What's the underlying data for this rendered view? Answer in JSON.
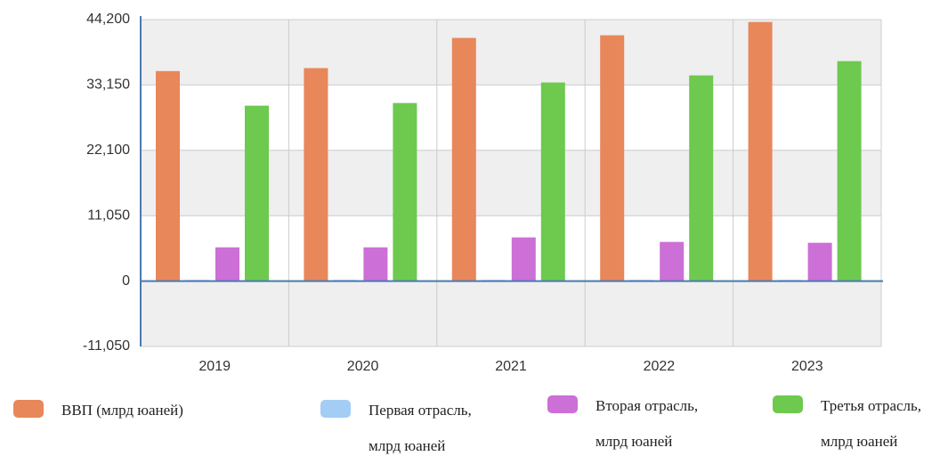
{
  "chart_data": {
    "type": "bar",
    "categories": [
      "2019",
      "2020",
      "2021",
      "2022",
      "2023"
    ],
    "series": [
      {
        "name": "ВВП (млрд юаней)",
        "color": "#e8875a",
        "values": [
          35500,
          36000,
          41100,
          41550,
          43800
        ]
      },
      {
        "name": "Первая отрасль, млрд юаней",
        "color": "#a3cdf5",
        "values": [
          200,
          200,
          200,
          200,
          200
        ]
      },
      {
        "name": "Вторая отрасль, млрд юаней",
        "color": "#cc6fd6",
        "values": [
          5700,
          5700,
          7380,
          6620,
          6470
        ]
      },
      {
        "name": "Третья отрасль, млрд юаней",
        "color": "#6ec94f",
        "values": [
          29650,
          30100,
          33570,
          34770,
          37180
        ]
      }
    ],
    "ylim": [
      -11050,
      44200
    ],
    "yticks": [
      {
        "value": -11050,
        "label": "-11,050"
      },
      0,
      {
        "value": 11050,
        "label": "11,050"
      },
      {
        "value": 22100,
        "label": "22,100"
      },
      {
        "value": 33150,
        "label": "33,150"
      },
      {
        "value": 44200,
        "label": "44,200"
      }
    ],
    "grid": true
  }
}
